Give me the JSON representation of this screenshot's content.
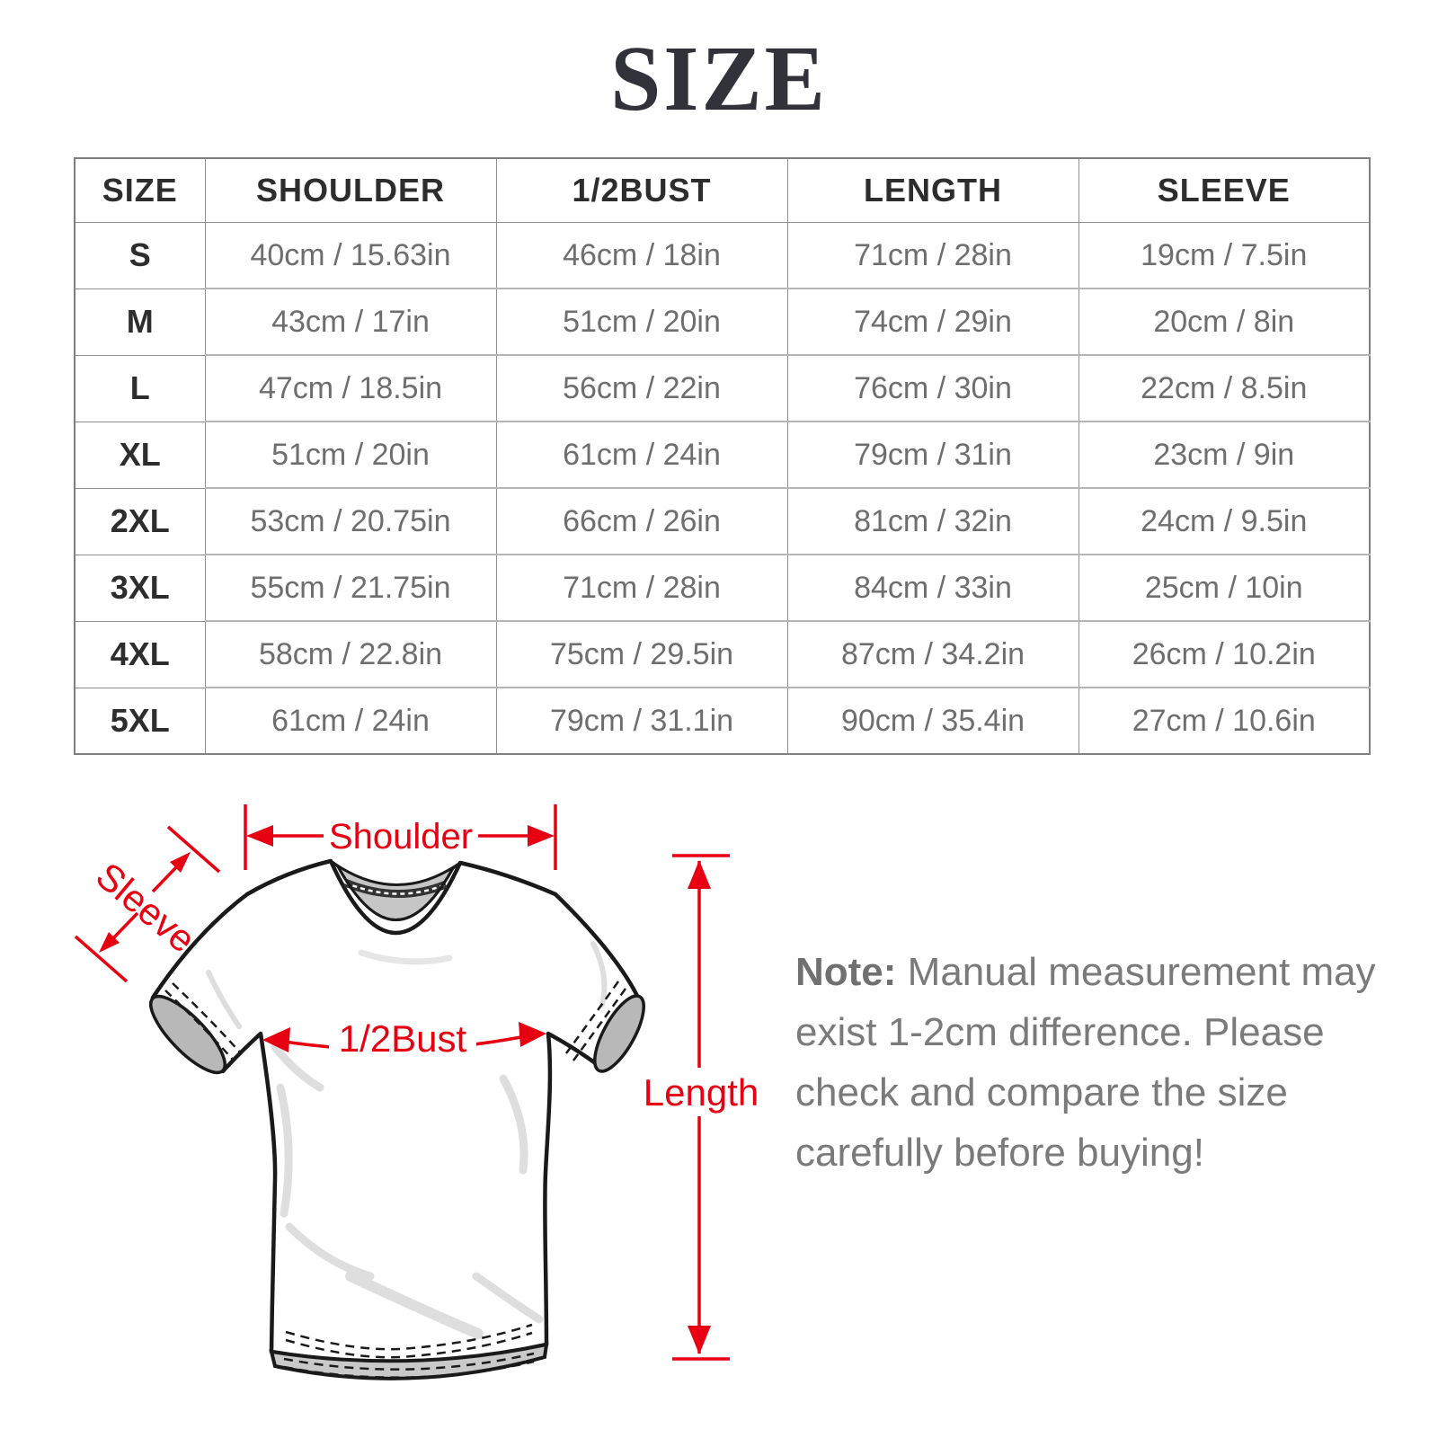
{
  "page": {
    "title": "SIZE"
  },
  "table": {
    "columns": [
      "SIZE",
      "SHOULDER",
      "1/2BUST",
      "LENGTH",
      "SLEEVE"
    ],
    "rows": [
      {
        "size": "S",
        "cells": [
          "40cm / 15.63in",
          "46cm / 18in",
          "71cm / 28in",
          "19cm / 7.5in"
        ]
      },
      {
        "size": "M",
        "cells": [
          "43cm / 17in",
          "51cm / 20in",
          "74cm / 29in",
          "20cm / 8in"
        ]
      },
      {
        "size": "L",
        "cells": [
          "47cm / 18.5in",
          "56cm / 22in",
          "76cm / 30in",
          "22cm / 8.5in"
        ]
      },
      {
        "size": "XL",
        "cells": [
          "51cm / 20in",
          "61cm / 24in",
          "79cm / 31in",
          "23cm / 9in"
        ]
      },
      {
        "size": "2XL",
        "cells": [
          "53cm / 20.75in",
          "66cm / 26in",
          "81cm / 32in",
          "24cm / 9.5in"
        ]
      },
      {
        "size": "3XL",
        "cells": [
          "55cm / 21.75in",
          "71cm / 28in",
          "84cm / 33in",
          "25cm / 10in"
        ]
      },
      {
        "size": "4XL",
        "cells": [
          "58cm / 22.8in",
          "75cm / 29.5in",
          "87cm / 34.2in",
          "26cm / 10.2in"
        ]
      },
      {
        "size": "5XL",
        "cells": [
          "61cm / 24in",
          "79cm / 31.1in",
          "90cm / 35.4in",
          "27cm / 10.6in"
        ]
      }
    ]
  },
  "diagram": {
    "labels": {
      "shoulder": "Shoulder",
      "sleeve": "Sleeve",
      "bust": "1/2Bust",
      "length": "Length"
    },
    "accent_color": "#e60012"
  },
  "note": {
    "label": "Note:",
    "lines": [
      "Manual measurement may",
      "exist 1-2cm difference. Please",
      "check and compare the size",
      "carefully before buying!"
    ]
  }
}
